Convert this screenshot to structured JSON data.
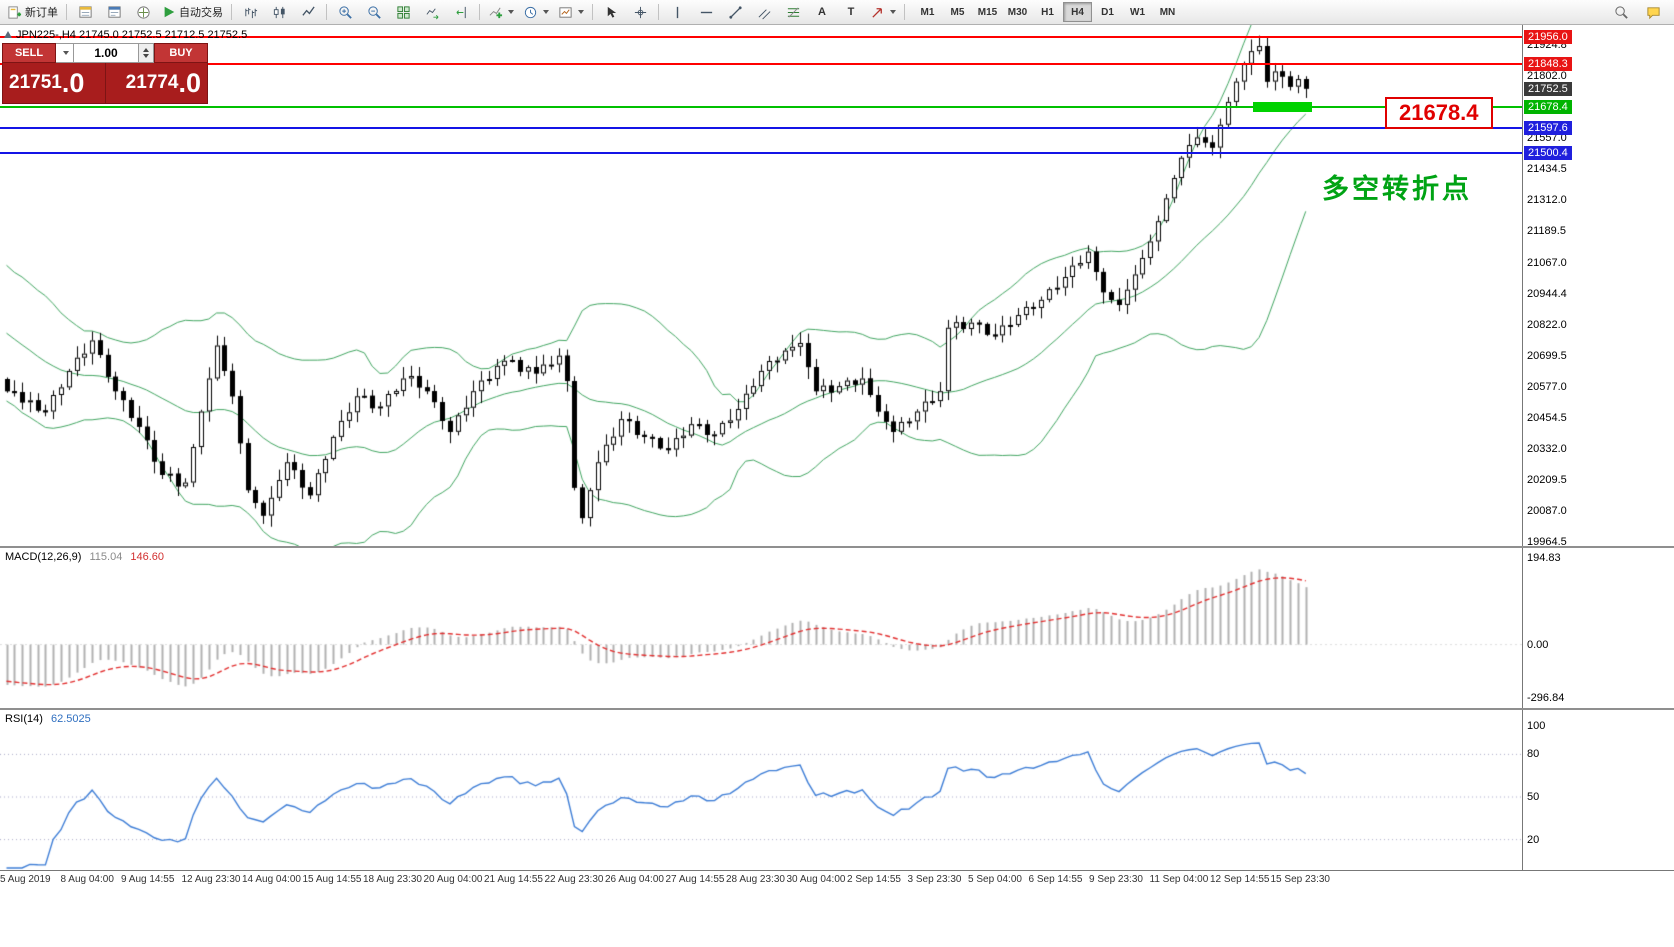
{
  "toolbar": {
    "new_order_label": "新订单",
    "autotrade_label": "自动交易",
    "text_tool_glyph": "A",
    "label_tool_glyph": "T",
    "timeframes": [
      "M1",
      "M5",
      "M15",
      "M30",
      "H1",
      "H4",
      "D1",
      "W1",
      "MN"
    ],
    "active_timeframe": "H4"
  },
  "chart": {
    "symbol": "JPN225-,H4",
    "ohlc_text": "21745.0 21752.5 21712.5 21752.5",
    "annotation_label": "21678.4",
    "annotation_cn": "多空转折点",
    "colors": {
      "up": "#ffffff",
      "down": "#000000",
      "bollinger": "#3fa45f",
      "rsi_line": "#3d7dd6",
      "macd_hist": "#b2b2b2",
      "macd_signal": "#e23030"
    }
  },
  "trade_panel": {
    "sell_label": "SELL",
    "buy_label": "BUY",
    "volume": "1.00",
    "sell_price_main": "21751",
    "sell_price_frac": ".0",
    "buy_price_main": "21774",
    "buy_price_frac": ".0"
  },
  "macd_header": {
    "name": "MACD(12,26,9)",
    "main_value": "115.04",
    "signal_value": "146.60"
  },
  "rsi_header": {
    "name": "RSI(14)",
    "value": "62.5025"
  },
  "chart_data": {
    "type": "candlestick",
    "symbol": "JPN225-",
    "timeframe": "H4",
    "price_axis": {
      "min": 19950,
      "max": 22003,
      "ticks": [
        21924.8,
        21802.0,
        21557.0,
        21434.5,
        21312.0,
        21189.5,
        21067.0,
        20944.4,
        20822.0,
        20699.5,
        20577.0,
        20454.5,
        20332.0,
        20209.5,
        20087.0,
        19964.5
      ],
      "boxes": [
        {
          "value": 21956.0,
          "label": "21956.0",
          "bg": "#e81414",
          "fg": "#ffffff"
        },
        {
          "value": 21848.3,
          "label": "21848.3",
          "bg": "#e81414",
          "fg": "#ffffff"
        },
        {
          "value": 21752.5,
          "label": "21752.5",
          "bg": "#3a3a3a",
          "fg": "#ffffff"
        },
        {
          "value": 21678.4,
          "label": "21678.4",
          "bg": "#00b400",
          "fg": "#ffffff"
        },
        {
          "value": 21597.6,
          "label": "21597.6",
          "bg": "#2020dd",
          "fg": "#ffffff"
        },
        {
          "value": 21500.4,
          "label": "21500.4",
          "bg": "#2020dd",
          "fg": "#ffffff"
        }
      ]
    },
    "levels": [
      {
        "price": 21956.0,
        "color": "#ff0000"
      },
      {
        "price": 21848.3,
        "color": "#ff0000"
      },
      {
        "price": 21678.4,
        "color": "#00c000"
      },
      {
        "price": 21597.6,
        "color": "#1414e6"
      },
      {
        "price": 21500.4,
        "color": "#1414e6"
      }
    ],
    "highlight_bar": {
      "price": 21678.4,
      "color": "#00d200"
    },
    "current_price": 21752.5,
    "bollinger": {
      "period": 20,
      "deviation": 2
    },
    "lead_in_closes": [
      21245,
      21237,
      21229,
      21176,
      21168,
      21160,
      21107,
      21099,
      21091,
      21038,
      21030,
      21022,
      20969,
      20961,
      20953,
      20900,
      20892,
      20884,
      20831,
      20823,
      20815,
      20762,
      20754,
      20746,
      20693,
      20685,
      20677,
      20624,
      20616,
      20608
    ],
    "closes": [
      20560,
      20556,
      20516,
      20524,
      20484,
      20480,
      20545,
      20575,
      20640,
      20692,
      20708,
      20760,
      20703,
      20617,
      20560,
      20525,
      20455,
      20420,
      20367,
      20283,
      20230,
      20235,
      20185,
      20200,
      20340,
      20480,
      20610,
      20740,
      20640,
      20540,
      20355,
      20170,
      20120,
      20070,
      20140,
      20210,
      20280,
      20249,
      20181,
      20150,
      20237,
      20293,
      20380,
      20443,
      20477,
      20540,
      20542,
      20493,
      20500,
      20549,
      20561,
      20610,
      20620,
      20575,
      20560,
      20517,
      20443,
      20400,
      20465,
      20495,
      20560,
      20602,
      20608,
      20660,
      20680,
      20683,
      20637,
      20655,
      20630,
      20665,
      20665,
      20700,
      20600,
      20180,
      20060,
      20170,
      20280,
      20349,
      20381,
      20450,
      20442,
      20388,
      20380,
      20375,
      20335,
      20330,
      20375,
      20385,
      20430,
      20429,
      20388,
      20390,
      20435,
      20445,
      20490,
      20550,
      20580,
      20640,
      20679,
      20681,
      20720,
      20735,
      20750,
      20655,
      20560,
      20582,
      20555,
      20580,
      20602,
      20586,
      20610,
      20545,
      20480,
      20440,
      20400,
      20439,
      20441,
      20480,
      20519,
      20521,
      20560,
      20810,
      20832,
      20805,
      20830,
      20825,
      20783,
      20780,
      20819,
      20821,
      20860,
      20892,
      20888,
      20920,
      20962,
      20968,
      21010,
      21055,
      21065,
      21110,
      21030,
      20950,
      20920,
      20900,
      20960,
      21020,
      21085,
      21150,
      21230,
      21320,
      21400,
      21480,
      21530,
      21560,
      21540,
      21520,
      21610,
      21700,
      21780,
      21850,
      21900,
      21920,
      21780,
      21820,
      21800,
      21760,
      21790,
      21752.5
    ],
    "macd": {
      "params": [
        12,
        26,
        9
      ],
      "main": 115.04,
      "signal": 146.6,
      "axis_max": "194.83",
      "axis_zero": "0.00",
      "axis_min": "-296.84"
    },
    "rsi": {
      "period": 14,
      "value": 62.5025,
      "levels": [
        80,
        50,
        20
      ],
      "axis_labels": [
        100,
        80,
        50,
        20
      ]
    },
    "time_labels": [
      "5 Aug 2019",
      "8 Aug 04:00",
      "9 Aug 14:55",
      "12 Aug 23:30",
      "14 Aug 04:00",
      "15 Aug 14:55",
      "18 Aug 23:30",
      "20 Aug 04:00",
      "21 Aug 14:55",
      "22 Aug 23:30",
      "26 Aug 04:00",
      "27 Aug 14:55",
      "28 Aug 23:30",
      "30 Aug 04:00",
      "2 Sep 14:55",
      "3 Sep 23:30",
      "5 Sep 04:00",
      "6 Sep 14:55",
      "9 Sep 23:30",
      "11 Sep 04:00",
      "12 Sep 14:55",
      "15 Sep 23:30"
    ]
  }
}
